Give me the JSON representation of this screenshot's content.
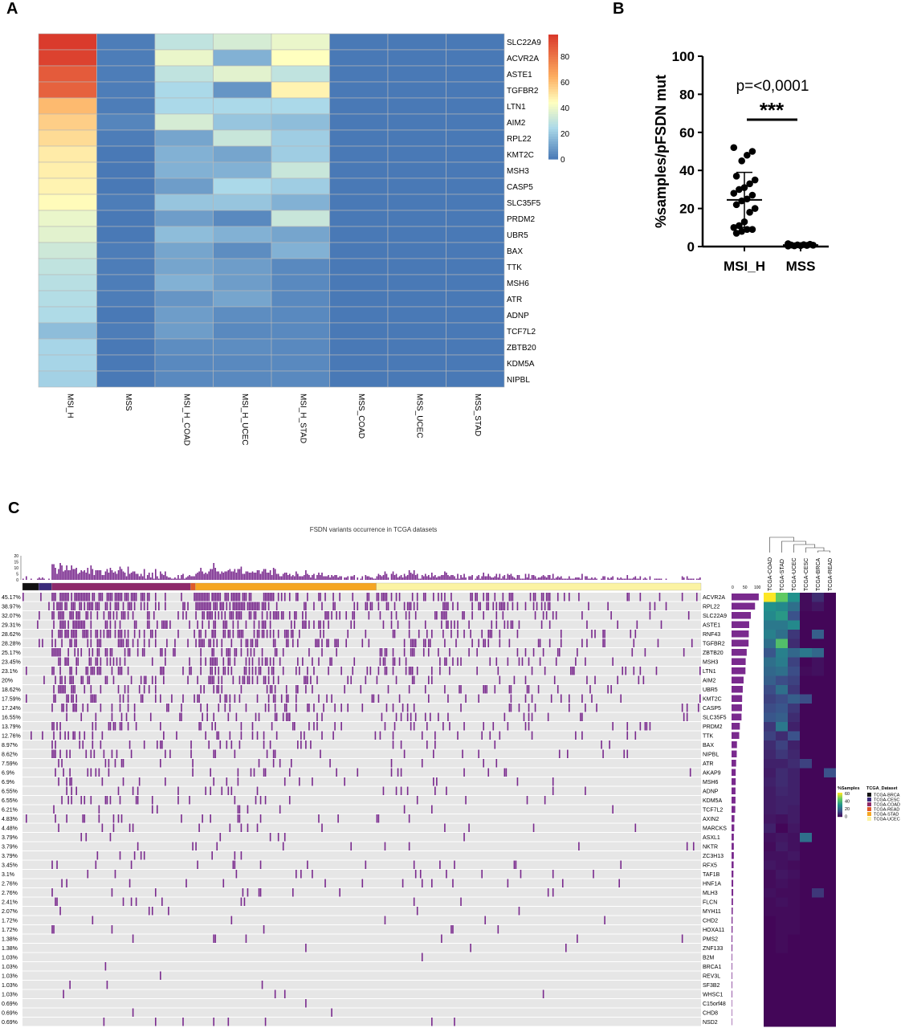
{
  "panels": {
    "a": "A",
    "b": "B",
    "c": "C"
  },
  "colors": {
    "heat_low": "#4575b4",
    "heat_mid": "#ffffbf",
    "heat_high": "#d73027",
    "oncoprint_hit": "#7a2a8e",
    "oncoprint_bg": "#e6e6e6",
    "freq_bar": "#7a2a8e"
  },
  "chart_data": [
    {
      "type": "heatmap",
      "panel": "A",
      "columns": [
        "MSI_H",
        "MSS",
        "MSI_H_COAD",
        "MSI_H_UCEC",
        "MSI_H_STAD",
        "MSS_COAD",
        "MSS_UCEC",
        "MSS_STAD"
      ],
      "rows": [
        "SLC22A9",
        "ACVR2A",
        "ASTE1",
        "TGFBR2",
        "LTN1",
        "AIM2",
        "RPL22",
        "KMT2C",
        "MSH3",
        "CASP5",
        "SLC35F5",
        "PRDM2",
        "UBR5",
        "BAX",
        "TTK",
        "MSH6",
        "ATR",
        "ADNP",
        "TCF7L2",
        "ZBTB20",
        "KDM5A",
        "NIPBL"
      ],
      "values": [
        [
          97,
          2,
          30,
          35,
          40,
          1,
          1,
          1
        ],
        [
          95,
          2,
          40,
          15,
          45,
          1,
          1,
          1
        ],
        [
          88,
          2,
          30,
          38,
          30,
          1,
          1,
          1
        ],
        [
          86,
          2,
          25,
          8,
          48,
          1,
          1,
          1
        ],
        [
          62,
          2,
          25,
          25,
          25,
          1,
          1,
          1
        ],
        [
          57,
          4,
          35,
          20,
          18,
          1,
          1,
          1
        ],
        [
          54,
          2,
          12,
          32,
          22,
          1,
          1,
          1
        ],
        [
          50,
          1,
          15,
          12,
          22,
          1,
          1,
          1
        ],
        [
          49,
          1,
          15,
          15,
          32,
          1,
          1,
          1
        ],
        [
          48,
          1,
          10,
          25,
          22,
          1,
          1,
          1
        ],
        [
          46,
          2,
          20,
          20,
          15,
          1,
          1,
          1
        ],
        [
          40,
          1,
          10,
          5,
          32,
          1,
          1,
          1
        ],
        [
          38,
          1,
          18,
          15,
          12,
          1,
          1,
          1
        ],
        [
          33,
          2,
          12,
          6,
          15,
          1,
          1,
          1
        ],
        [
          30,
          2,
          12,
          10,
          5,
          1,
          1,
          1
        ],
        [
          28,
          2,
          15,
          10,
          5,
          1,
          1,
          1
        ],
        [
          27,
          2,
          8,
          12,
          5,
          1,
          1,
          1
        ],
        [
          26,
          1,
          10,
          6,
          5,
          1,
          1,
          1
        ],
        [
          18,
          2,
          10,
          5,
          5,
          1,
          1,
          1
        ],
        [
          24,
          1,
          6,
          6,
          5,
          1,
          1,
          1
        ],
        [
          24,
          1,
          5,
          5,
          5,
          1,
          1,
          1
        ],
        [
          23,
          1,
          5,
          5,
          5,
          1,
          1,
          1
        ]
      ],
      "colorbar": {
        "ticks": [
          0,
          20,
          40,
          60,
          80
        ],
        "range": [
          0,
          97
        ]
      }
    },
    {
      "type": "scatter",
      "panel": "B",
      "categories": [
        "MSI_H",
        "MSS"
      ],
      "ylabel": "%samples/pFSDN mut",
      "ylim": [
        0,
        100
      ],
      "yticks": [
        0,
        20,
        40,
        60,
        80,
        100
      ],
      "annotation_p": "p=<0,0001",
      "annotation_sig": "***",
      "series": [
        {
          "category": "MSI_H",
          "values": [
            52,
            50,
            48,
            45,
            37,
            35,
            33,
            31,
            30,
            28,
            27,
            25,
            24,
            22,
            20,
            18,
            13,
            11,
            10,
            9,
            9,
            8,
            7
          ],
          "mean": 24.5,
          "sd_low": 10,
          "sd_high": 39
        },
        {
          "category": "MSS",
          "values": [
            1.5,
            1.2,
            1.0,
            0.9,
            0.8,
            0.7,
            0.6,
            0.5,
            0.4,
            0.3
          ],
          "mean": 0.8,
          "sd_low": 0.2,
          "sd_high": 1.4
        }
      ]
    },
    {
      "type": "table",
      "panel": "C",
      "title": "FSDN variants occurrence in TCGA datasets",
      "genes": [
        "ACVR2A",
        "RPL22",
        "SLC22A9",
        "ASTE1",
        "RNF43",
        "TGFBR2",
        "ZBTB20",
        "MSH3",
        "LTN1",
        "AIM2",
        "UBR5",
        "KMT2C",
        "CASP5",
        "SLC35F5",
        "PRDM2",
        "TTK",
        "BAX",
        "NIPBL",
        "ATR",
        "AKAP9",
        "MSH6",
        "ADNP",
        "KDM5A",
        "TCF7L2",
        "AXIN2",
        "MARCKS",
        "ASXL1",
        "NKTR",
        "ZC3H13",
        "RFX5",
        "TAF1B",
        "HNF1A",
        "MLH3",
        "FLCN",
        "MYH11",
        "CHD2",
        "HOXA11",
        "PMS2",
        "ZNF133",
        "B2M",
        "BRCA1",
        "REV3L",
        "SF3B2",
        "WHSC1",
        "C15orf48",
        "CHD8",
        "NSD2"
      ],
      "percentages": [
        "45.17%",
        "38.97%",
        "32.07%",
        "29.31%",
        "28.62%",
        "28.28%",
        "25.17%",
        "23.45%",
        "23.1%",
        "20%",
        "18.62%",
        "17.59%",
        "17.24%",
        "16.55%",
        "13.79%",
        "12.76%",
        "8.97%",
        "8.62%",
        "7.59%",
        "6.9%",
        "6.9%",
        "6.55%",
        "6.55%",
        "6.21%",
        "4.83%",
        "4.48%",
        "3.79%",
        "3.79%",
        "3.79%",
        "3.45%",
        "3.1%",
        "2.76%",
        "2.76%",
        "2.41%",
        "2.07%",
        "1.72%",
        "1.72%",
        "1.38%",
        "1.38%",
        "1.03%",
        "1.03%",
        "1.03%",
        "1.03%",
        "1.03%",
        "0.69%",
        "0.69%",
        "0.69%"
      ],
      "top_bar_ticks": [
        0,
        5,
        10,
        15,
        20
      ],
      "side_bar_ticks": [
        0,
        50,
        100
      ],
      "datasets": [
        "TCGA-COAD",
        "TCGA-STAD",
        "TCGA-UCEC",
        "TCGA-CESC",
        "TCGA-BRCA",
        "TCGA-READ"
      ],
      "legend_title_1": "%Samples",
      "legend_title_2": "TCGA_Dataset",
      "legend_ticks": [
        60,
        40,
        20,
        0
      ],
      "legend_datasets": [
        "TCGA-BRCA",
        "TCGA-CESC",
        "TCGA-COAD",
        "TCGA-READ",
        "TCGA-STAD",
        "TCGA-UCEC"
      ],
      "legend_dataset_colors": [
        "#111111",
        "#3b2a7a",
        "#8e2a6a",
        "#e05a2a",
        "#f5a623",
        "#fbf3a3"
      ],
      "dataset_heatmap": [
        [
          60,
          45,
          30,
          2,
          8,
          1
        ],
        [
          30,
          28,
          22,
          2,
          4,
          1
        ],
        [
          28,
          32,
          15,
          1,
          1,
          1
        ],
        [
          24,
          24,
          28,
          1,
          1,
          1
        ],
        [
          26,
          22,
          10,
          1,
          18,
          1
        ],
        [
          22,
          42,
          8,
          1,
          1,
          1
        ],
        [
          16,
          26,
          20,
          24,
          20,
          1
        ],
        [
          22,
          25,
          12,
          1,
          3,
          1
        ],
        [
          20,
          22,
          14,
          2,
          3,
          1
        ],
        [
          18,
          14,
          12,
          1,
          1,
          1
        ],
        [
          14,
          22,
          10,
          1,
          1,
          1
        ],
        [
          12,
          14,
          18,
          14,
          1,
          1
        ],
        [
          14,
          16,
          10,
          1,
          1,
          1
        ],
        [
          16,
          18,
          8,
          1,
          1,
          1
        ],
        [
          10,
          24,
          6,
          1,
          1,
          1
        ],
        [
          12,
          8,
          15,
          1,
          1,
          1
        ],
        [
          8,
          12,
          6,
          1,
          1,
          1
        ],
        [
          7,
          10,
          7,
          1,
          1,
          1
        ],
        [
          6,
          6,
          8,
          12,
          1,
          1
        ],
        [
          5,
          8,
          6,
          1,
          1,
          15
        ],
        [
          6,
          8,
          6,
          1,
          1,
          1
        ],
        [
          5,
          7,
          6,
          1,
          1,
          1
        ],
        [
          5,
          6,
          6,
          1,
          1,
          1
        ],
        [
          5,
          6,
          5,
          1,
          1,
          1
        ],
        [
          4,
          3,
          5,
          1,
          1,
          1
        ],
        [
          6,
          1,
          4,
          1,
          1,
          1
        ],
        [
          3,
          4,
          3,
          22,
          1,
          1
        ],
        [
          2,
          5,
          3,
          1,
          1,
          1
        ],
        [
          3,
          3,
          4,
          1,
          1,
          1
        ],
        [
          4,
          3,
          2,
          1,
          1,
          1
        ],
        [
          2,
          4,
          3,
          1,
          1,
          1
        ],
        [
          2,
          3,
          2,
          1,
          1,
          1
        ],
        [
          3,
          2,
          2,
          1,
          10,
          1
        ],
        [
          2,
          3,
          2,
          1,
          1,
          1
        ],
        [
          2,
          2,
          2,
          1,
          1,
          1
        ],
        [
          1,
          2,
          2,
          1,
          1,
          1
        ],
        [
          1,
          2,
          2,
          1,
          1,
          1
        ],
        [
          1,
          2,
          1,
          1,
          1,
          1
        ],
        [
          1,
          2,
          1,
          1,
          1,
          1
        ],
        [
          1,
          1,
          1,
          1,
          1,
          1
        ],
        [
          1,
          1,
          1,
          1,
          1,
          1
        ],
        [
          1,
          1,
          1,
          1,
          1,
          1
        ],
        [
          1,
          1,
          1,
          1,
          1,
          1
        ],
        [
          1,
          1,
          1,
          1,
          1,
          1
        ],
        [
          1,
          1,
          1,
          1,
          1,
          1
        ],
        [
          1,
          1,
          1,
          1,
          1,
          1
        ],
        [
          1,
          1,
          1,
          1,
          1,
          1
        ]
      ]
    }
  ]
}
